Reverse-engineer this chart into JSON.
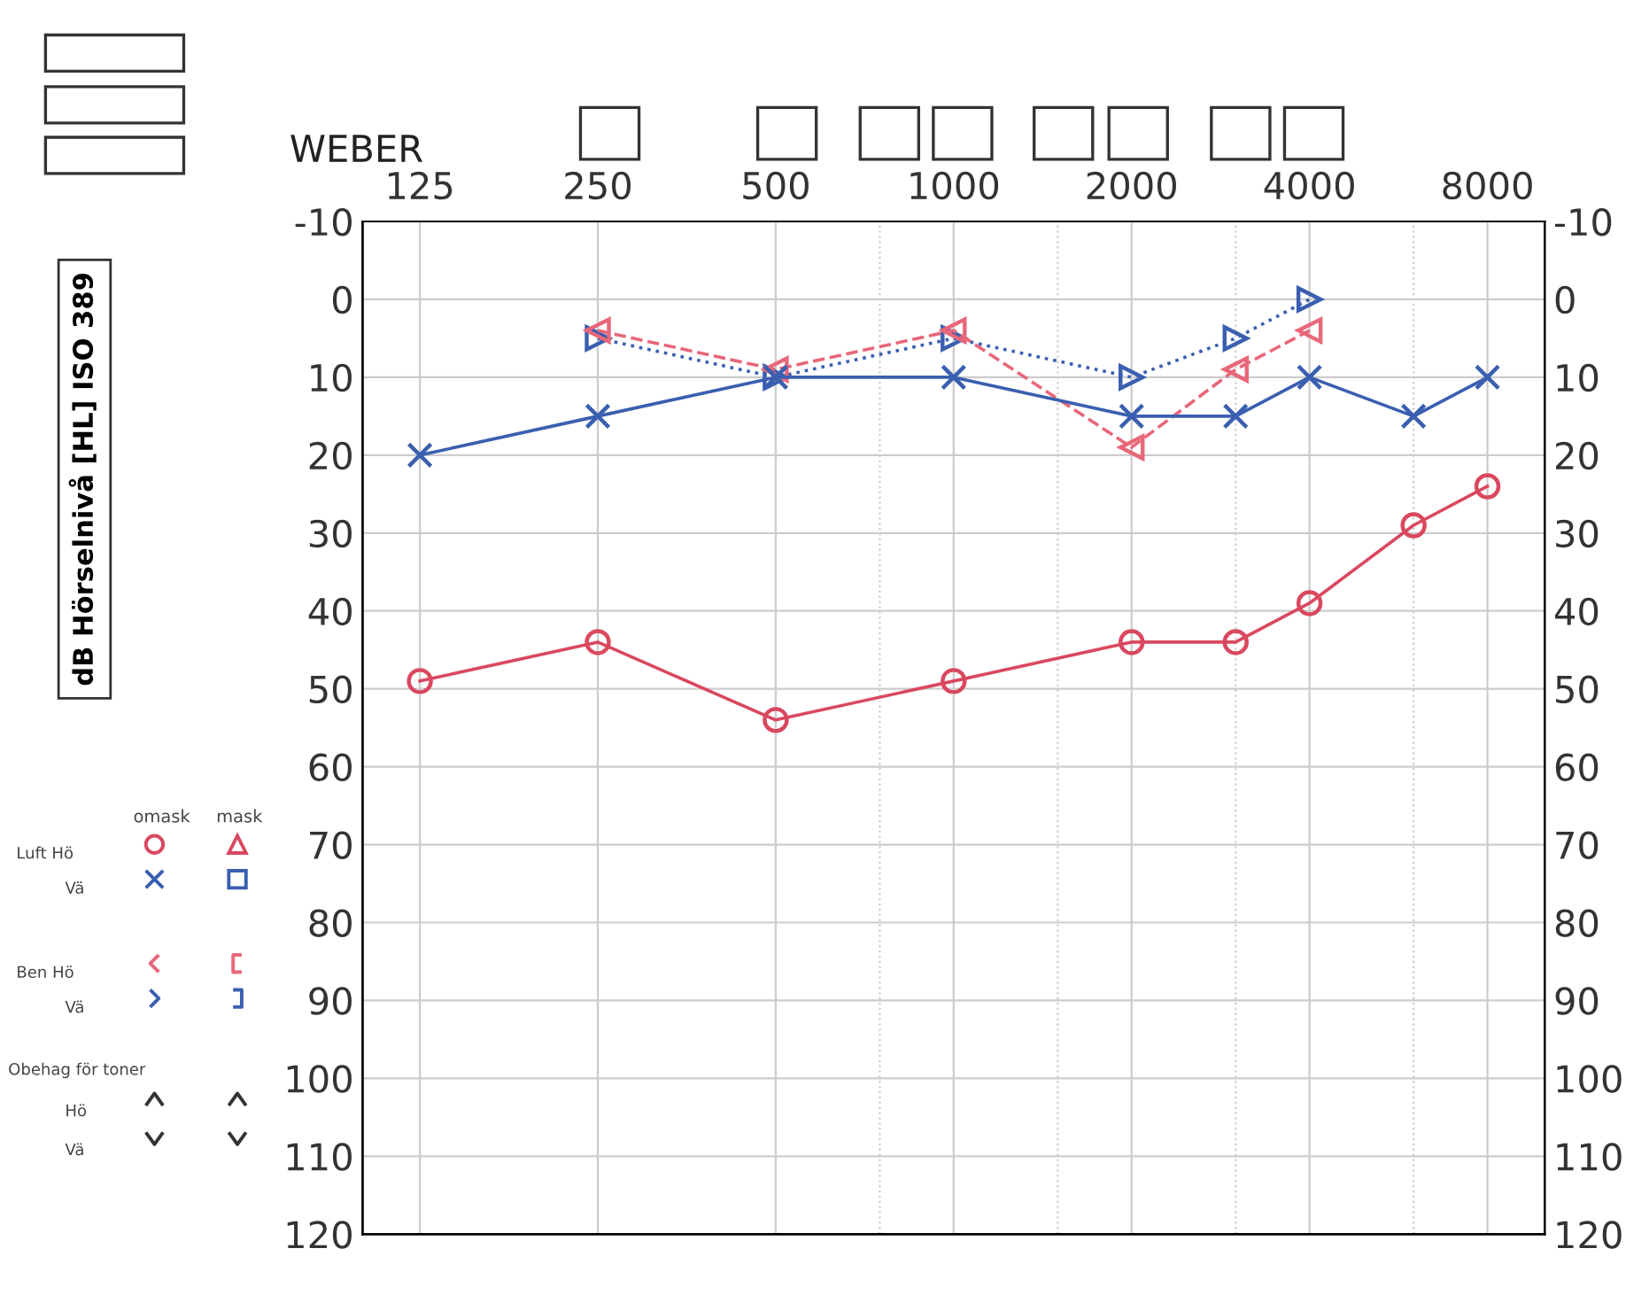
{
  "chart_data": {
    "type": "line",
    "log": "x",
    "xlim": [
      100,
      10000
    ],
    "xticks": [
      125,
      250,
      500,
      {
        "value": 750,
        "label": null
      },
      1000,
      {
        "value": 1500,
        "label": null
      },
      2000,
      {
        "value": 3000,
        "label": null
      },
      4000,
      {
        "value": 6000,
        "label": null
      },
      8000
    ],
    "ylim": [
      120,
      -10
    ],
    "yticks": [
      -10,
      0,
      10,
      20,
      30,
      40,
      50,
      60,
      70,
      80,
      90,
      100,
      110,
      120
    ],
    "y2lim": [
      120,
      -10
    ],
    "y2ticks": [
      -10,
      0,
      10,
      20,
      30,
      40,
      50,
      60,
      70,
      80,
      90,
      100,
      110,
      120
    ],
    "grid": true,
    "annotations": [
      "dB Hörselnivå [HL] ISO 389",
      "WEBER",
      "omask",
      "mask",
      "Luft Hö",
      "Vä",
      "Ben Hö",
      "Vä",
      "Obehag för toner",
      "Hö",
      "Vä"
    ],
    "series": [
      {
        "color": "#d9485f",
        "marker": "circle",
        "line_style": "solid",
        "x": [
          125,
          250,
          500,
          1000,
          2000,
          3000,
          4000,
          6000,
          8000
        ],
        "values": [
          49,
          44,
          54,
          49,
          44,
          44,
          39,
          29,
          24
        ]
      },
      {
        "color": "#3a5fb0",
        "marker": "cross",
        "line_style": "solid",
        "x": [
          125,
          250,
          500,
          1000,
          2000,
          3000,
          4000,
          6000,
          8000
        ],
        "values": [
          20,
          15,
          10,
          10,
          15,
          15,
          10,
          15,
          10
        ]
      },
      {
        "color": "#e8677a",
        "marker": "triangle",
        "line_style": "dashed",
        "x": [
          250,
          500,
          1000,
          2000,
          3000,
          4000
        ],
        "values": [
          4,
          9,
          4,
          19,
          9,
          4
        ]
      },
      {
        "color": "#3a5fb0",
        "marker": "triangle",
        "line_style": "dotted",
        "x": [
          250,
          500,
          1000,
          2000,
          3000,
          4000
        ],
        "values": [
          5,
          10,
          5,
          10,
          5,
          0
        ]
      }
    ]
  }
}
